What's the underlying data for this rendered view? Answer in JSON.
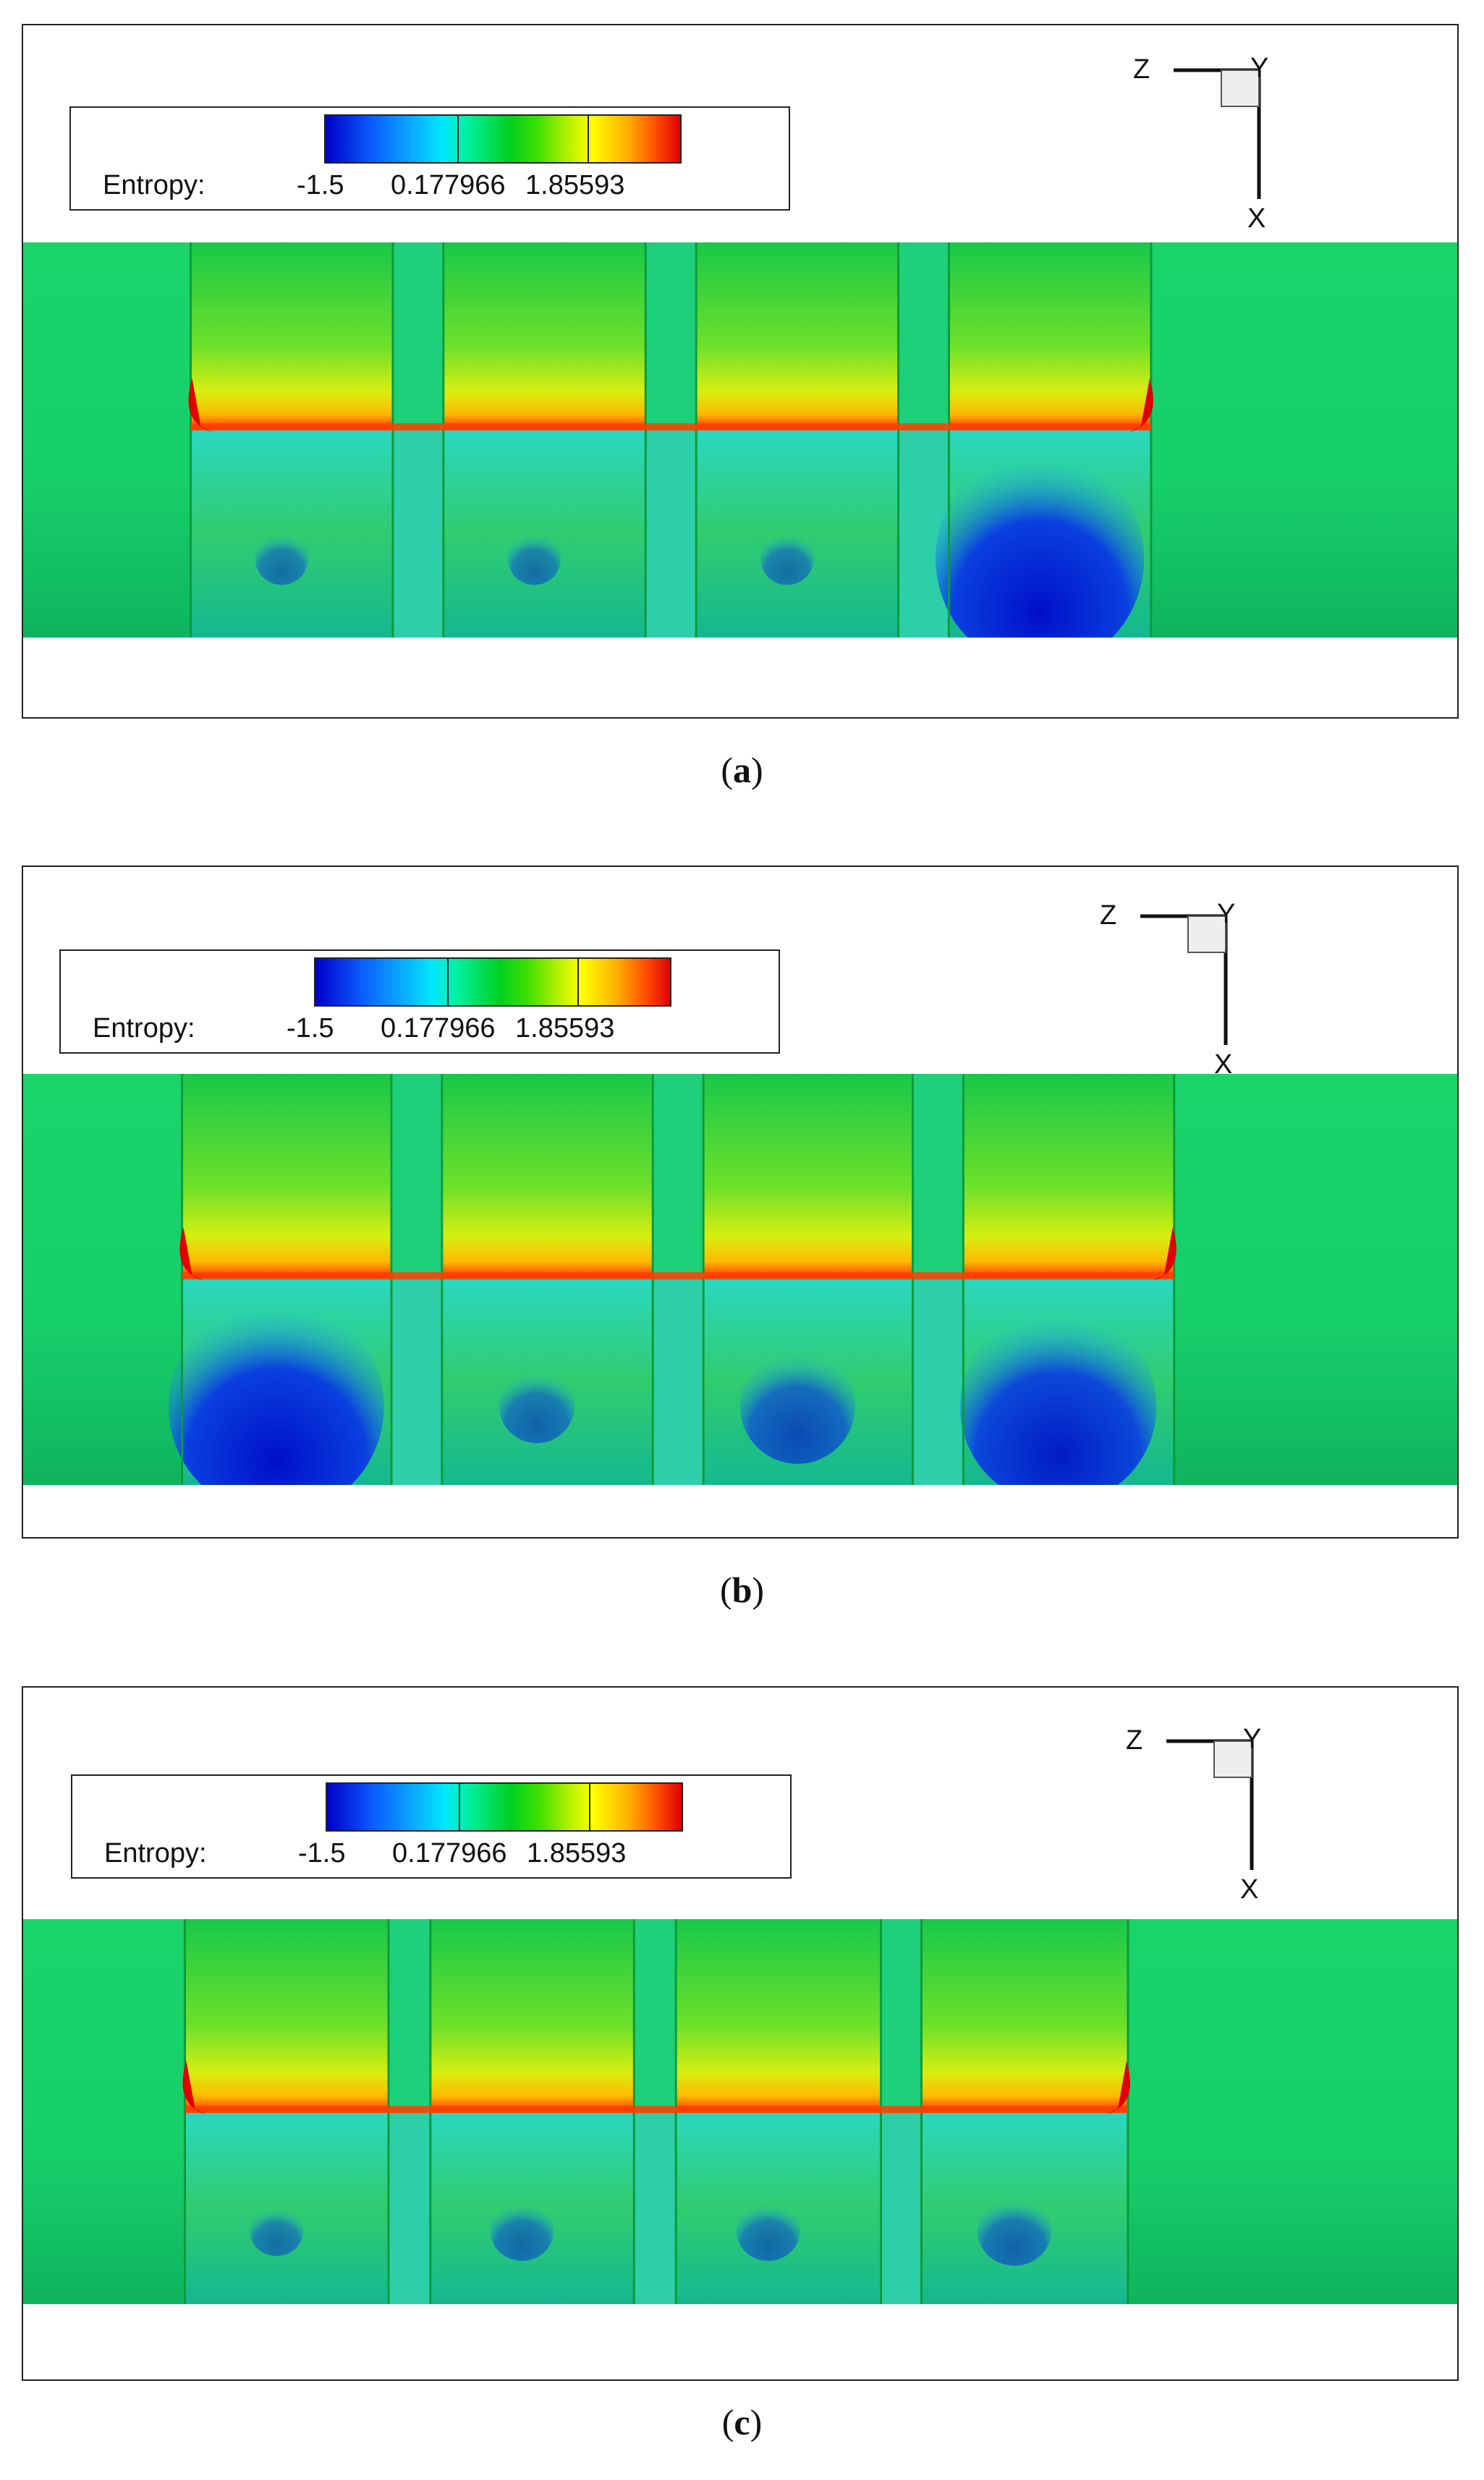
{
  "panels": [
    {
      "id": "a",
      "caption_letter": "a",
      "legend": {
        "label": "Entropy:",
        "ticks": [
          "-1.5",
          "0.177966",
          "1.85593"
        ]
      },
      "axes": {
        "z": "Z",
        "y": "Y",
        "x": "X"
      },
      "cells_low_entropy": [
        0.2,
        0.2,
        0.2,
        1.0
      ]
    },
    {
      "id": "b",
      "caption_letter": "b",
      "legend": {
        "label": "Entropy:",
        "ticks": [
          "-1.5",
          "0.177966",
          "1.85593"
        ]
      },
      "axes": {
        "z": "Z",
        "y": "Y",
        "x": "X"
      },
      "cells_low_entropy": [
        1.0,
        0.3,
        0.5,
        0.9
      ]
    },
    {
      "id": "c",
      "caption_letter": "c",
      "legend": {
        "label": "Entropy:",
        "ticks": [
          "-1.5",
          "0.177966",
          "1.85593"
        ]
      },
      "axes": {
        "z": "Z",
        "y": "Y",
        "x": "X"
      },
      "cells_low_entropy": [
        0.2,
        0.25,
        0.25,
        0.3
      ]
    }
  ],
  "colormap": {
    "low": "#0000c8",
    "mid": "#00d020",
    "high": "#e00000"
  }
}
